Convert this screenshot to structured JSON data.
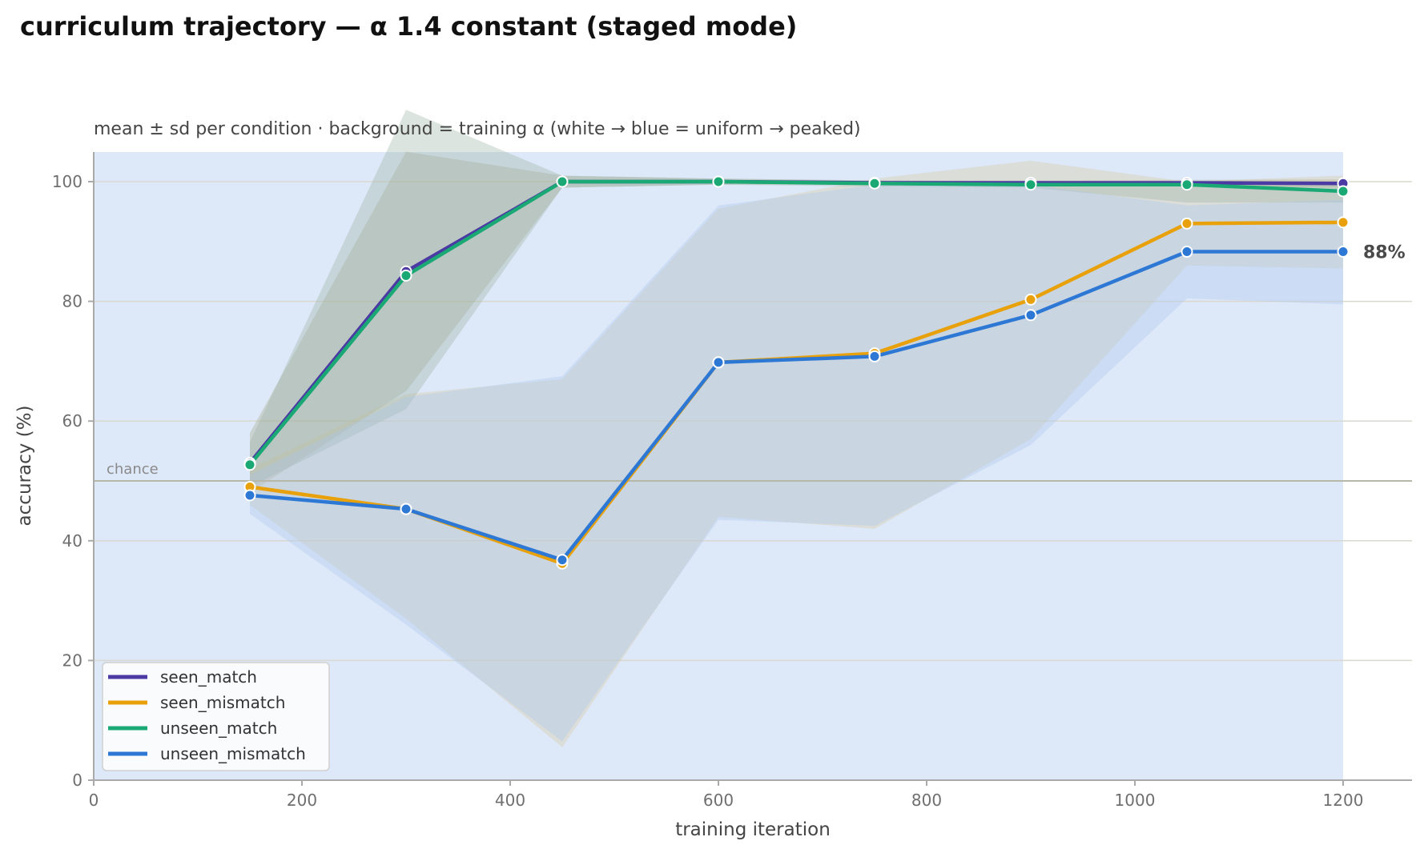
{
  "chart_data": {
    "type": "line",
    "title": "curriculum trajectory — α 1.4 constant (staged mode)",
    "subtitle": "mean ± sd per condition · background = training α (white → blue = uniform → peaked)",
    "xlabel": "training iteration",
    "ylabel": "accuracy (%)",
    "xlim": [
      0,
      1270
    ],
    "ylim": [
      0,
      105
    ],
    "xticks": [
      0,
      200,
      400,
      600,
      800,
      1000,
      1200
    ],
    "yticks": [
      0,
      20,
      40,
      60,
      80,
      100
    ],
    "grid": "horizontal",
    "legend_position": "lower-left",
    "background_band": {
      "from": 0,
      "to": 1200,
      "color": "#dde8f8"
    },
    "reference_line": {
      "y": 50,
      "label": "chance",
      "color": "#b8b8a8"
    },
    "x": [
      150,
      300,
      450,
      600,
      750,
      900,
      1050,
      1200
    ],
    "series": [
      {
        "name": "seen_match",
        "color": "#4b3aa3",
        "values": [
          53.0,
          85.0,
          100.0,
          100.0,
          99.8,
          99.8,
          99.8,
          99.7
        ],
        "sd_lower": [
          48,
          65,
          99,
          99.5,
          99.5,
          99.5,
          99.2,
          99.0
        ],
        "sd_upper": [
          58,
          105,
          101,
          100.5,
          100.2,
          100.2,
          100.3,
          100.4
        ]
      },
      {
        "name": "seen_mismatch",
        "color": "#e8a10a",
        "values": [
          49.0,
          45.3,
          36.2,
          69.8,
          71.3,
          80.3,
          93.0,
          93.2
        ],
        "sd_lower": [
          46,
          27,
          5.5,
          44,
          42,
          57,
          86,
          85.5
        ],
        "sd_upper": [
          52,
          64.5,
          67,
          95.5,
          100.5,
          103.5,
          100,
          101
        ]
      },
      {
        "name": "unseen_match",
        "color": "#1aa874",
        "values": [
          52.7,
          84.3,
          100.0,
          100.0,
          99.7,
          99.5,
          99.5,
          98.4
        ],
        "sd_lower": [
          49,
          62,
          99,
          99.5,
          99.2,
          99,
          96.5,
          96.5
        ],
        "sd_upper": [
          56.5,
          112,
          101,
          100.5,
          100.2,
          100,
          100,
          100
        ]
      },
      {
        "name": "unseen_mismatch",
        "color": "#2d78d4",
        "values": [
          47.6,
          45.3,
          36.8,
          69.8,
          70.8,
          77.7,
          88.3,
          88.3
        ],
        "sd_lower": [
          44.5,
          26,
          6.5,
          43.5,
          42.5,
          56,
          80.5,
          79.5
        ],
        "sd_upper": [
          51,
          64,
          67.5,
          96,
          99.5,
          99.5,
          96,
          97
        ]
      }
    ],
    "end_annotation": {
      "series": "unseen_mismatch",
      "label": "88%"
    }
  }
}
